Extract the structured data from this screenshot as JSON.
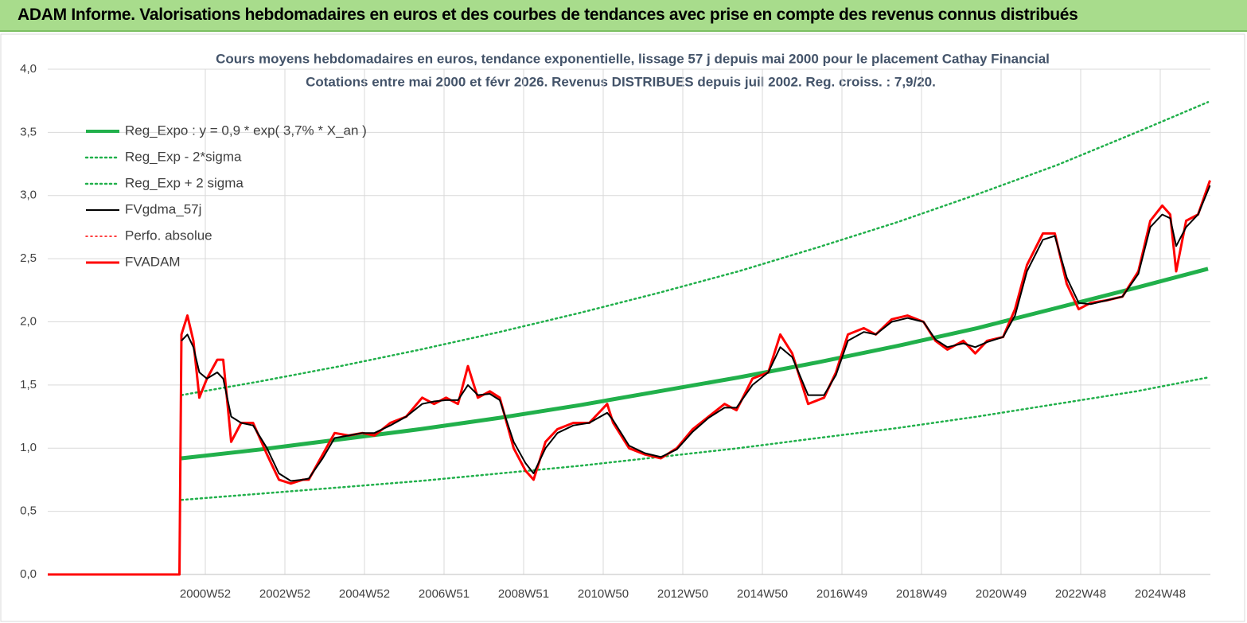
{
  "header_title": "ADAM Informe. Valorisations hebdomadaires en euros et des courbes de tendances avec prise en compte des revenus connus distribués",
  "chart_data": {
    "type": "line",
    "title": "Cours moyens hebdomadaires en euros, tendance exponentielle, lissage 57 j depuis mai 2000 pour le placement Cathay Financial",
    "subtitle": "Cotations entre mai 2000 et févr 2026. Revenus DISTRIBUES depuis juil 2002. Reg. croiss. : 7,9/20.",
    "xlim": [
      1997.04,
      2026.26
    ],
    "xticks": [
      {
        "value": 2001,
        "label": "2000W52"
      },
      {
        "value": 2003,
        "label": "2002W52"
      },
      {
        "value": 2005,
        "label": "2004W52"
      },
      {
        "value": 2007,
        "label": "2006W51"
      },
      {
        "value": 2009,
        "label": "2008W51"
      },
      {
        "value": 2011,
        "label": "2010W50"
      },
      {
        "value": 2013,
        "label": "2012W50"
      },
      {
        "value": 2015,
        "label": "2014W50"
      },
      {
        "value": 2017,
        "label": "2016W49"
      },
      {
        "value": 2019,
        "label": "2018W49"
      },
      {
        "value": 2021,
        "label": "2020W49"
      },
      {
        "value": 2023,
        "label": "2022W48"
      },
      {
        "value": 2025,
        "label": "2024W48"
      }
    ],
    "ylim": [
      0,
      4
    ],
    "yticks": [
      {
        "value": 0,
        "label": "0,0"
      },
      {
        "value": 0.5,
        "label": "0,5"
      },
      {
        "value": 1,
        "label": "1,0"
      },
      {
        "value": 1.5,
        "label": "1,5"
      },
      {
        "value": 2,
        "label": "2,0"
      },
      {
        "value": 2.5,
        "label": "2,5"
      },
      {
        "value": 3,
        "label": "3,0"
      },
      {
        "value": 3.5,
        "label": "3,5"
      },
      {
        "value": 4,
        "label": "4,0"
      }
    ],
    "grid": true,
    "legend": "top-left",
    "series": [
      {
        "name": "Reg_Expo : y = 0,9 * exp( 3,7% *  X_an )",
        "color": "#21b04b",
        "style": "solid",
        "width": 5,
        "x": [
          2000.4,
          2002.4,
          2004.4,
          2006.4,
          2008.4,
          2010.4,
          2012.4,
          2014.4,
          2016.4,
          2018.4,
          2020.4,
          2022.4,
          2024.4,
          2026.2
        ],
        "values": [
          0.92,
          0.99,
          1.07,
          1.15,
          1.24,
          1.34,
          1.45,
          1.56,
          1.68,
          1.81,
          1.95,
          2.11,
          2.27,
          2.42
        ]
      },
      {
        "name": "Reg_Exp - 2*sigma",
        "color": "#21b04b",
        "style": "dotted",
        "width": 2.5,
        "x": [
          2000.4,
          2002.4,
          2004.4,
          2006.4,
          2008.4,
          2010.4,
          2012.4,
          2014.4,
          2016.4,
          2018.4,
          2020.4,
          2022.4,
          2024.4,
          2026.2
        ],
        "values": [
          0.59,
          0.64,
          0.69,
          0.74,
          0.8,
          0.86,
          0.93,
          1.0,
          1.08,
          1.16,
          1.25,
          1.35,
          1.45,
          1.56
        ]
      },
      {
        "name": "Reg_Exp + 2 sigma",
        "color": "#21b04b",
        "style": "dotted",
        "width": 2.5,
        "x": [
          2000.4,
          2002.4,
          2004.4,
          2006.4,
          2008.4,
          2010.4,
          2012.4,
          2014.4,
          2016.4,
          2018.4,
          2020.4,
          2022.4,
          2024.4,
          2026.2
        ],
        "values": [
          1.42,
          1.53,
          1.65,
          1.78,
          1.92,
          2.07,
          2.23,
          2.4,
          2.59,
          2.79,
          3.01,
          3.24,
          3.5,
          3.74
        ]
      },
      {
        "name": "FVgdma_57j",
        "color": "#000000",
        "style": "solid",
        "width": 2,
        "x": [
          2000.4,
          2000.55,
          2000.7,
          2000.85,
          2001.04,
          2001.3,
          2001.45,
          2001.65,
          2001.9,
          2002.2,
          2002.55,
          2002.85,
          2003.15,
          2003.45,
          2003.6,
          2003.95,
          2004.25,
          2004.6,
          2004.95,
          2005.25,
          2005.65,
          2006.05,
          2006.45,
          2006.75,
          2007.05,
          2007.35,
          2007.6,
          2007.85,
          2008.15,
          2008.4,
          2008.75,
          2009.05,
          2009.25,
          2009.55,
          2009.85,
          2010.25,
          2010.65,
          2011.1,
          2011.25,
          2011.65,
          2012.05,
          2012.45,
          2012.85,
          2013.25,
          2013.65,
          2014.05,
          2014.35,
          2014.75,
          2015.15,
          2015.45,
          2015.75,
          2016.15,
          2016.55,
          2016.85,
          2017.15,
          2017.55,
          2017.85,
          2018.25,
          2018.65,
          2019.05,
          2019.35,
          2019.65,
          2020.05,
          2020.35,
          2020.65,
          2021.05,
          2021.35,
          2021.65,
          2022.05,
          2022.35,
          2022.65,
          2022.95,
          2023.25,
          2023.65,
          2024.05,
          2024.45,
          2024.75,
          2025.05,
          2025.25,
          2025.4,
          2025.65,
          2025.95,
          2026.25
        ],
        "values": [
          1.85,
          1.9,
          1.8,
          1.6,
          1.55,
          1.6,
          1.55,
          1.25,
          1.2,
          1.18,
          1.0,
          0.8,
          0.74,
          0.75,
          0.76,
          0.92,
          1.08,
          1.1,
          1.12,
          1.12,
          1.18,
          1.25,
          1.35,
          1.37,
          1.38,
          1.38,
          1.5,
          1.42,
          1.43,
          1.38,
          1.05,
          0.88,
          0.8,
          1.0,
          1.12,
          1.18,
          1.2,
          1.28,
          1.22,
          1.02,
          0.96,
          0.93,
          0.99,
          1.13,
          1.24,
          1.32,
          1.32,
          1.5,
          1.6,
          1.8,
          1.72,
          1.42,
          1.42,
          1.58,
          1.85,
          1.92,
          1.9,
          2.0,
          2.03,
          2.0,
          1.86,
          1.8,
          1.83,
          1.8,
          1.84,
          1.88,
          2.05,
          2.4,
          2.65,
          2.68,
          2.35,
          2.15,
          2.14,
          2.17,
          2.2,
          2.38,
          2.75,
          2.85,
          2.82,
          2.6,
          2.75,
          2.85,
          3.08
        ]
      },
      {
        "name": "Perfo. absolue",
        "color": "#ff0000",
        "style": "dotted",
        "width": 1.5,
        "x": [],
        "values": []
      },
      {
        "name": "FVADAM",
        "color": "#ff0000",
        "style": "solid",
        "width": 3,
        "x": [
          1997.04,
          2000.35,
          2000.4,
          2000.55,
          2000.7,
          2000.85,
          2001.04,
          2001.3,
          2001.45,
          2001.65,
          2001.9,
          2002.2,
          2002.55,
          2002.85,
          2003.15,
          2003.45,
          2003.6,
          2003.95,
          2004.25,
          2004.6,
          2004.95,
          2005.25,
          2005.65,
          2006.05,
          2006.45,
          2006.75,
          2007.05,
          2007.35,
          2007.6,
          2007.85,
          2008.15,
          2008.4,
          2008.75,
          2009.05,
          2009.25,
          2009.55,
          2009.85,
          2010.25,
          2010.65,
          2011.1,
          2011.25,
          2011.65,
          2012.05,
          2012.45,
          2012.85,
          2013.25,
          2013.65,
          2014.05,
          2014.35,
          2014.75,
          2015.15,
          2015.45,
          2015.75,
          2016.15,
          2016.55,
          2016.85,
          2017.15,
          2017.55,
          2017.85,
          2018.25,
          2018.65,
          2019.05,
          2019.35,
          2019.65,
          2020.05,
          2020.35,
          2020.65,
          2021.05,
          2021.35,
          2021.65,
          2022.05,
          2022.35,
          2022.65,
          2022.95,
          2023.25,
          2023.65,
          2024.05,
          2024.45,
          2024.75,
          2025.05,
          2025.25,
          2025.4,
          2025.65,
          2025.95,
          2026.25
        ],
        "values": [
          0,
          0,
          1.9,
          2.05,
          1.85,
          1.4,
          1.55,
          1.7,
          1.7,
          1.05,
          1.2,
          1.2,
          0.95,
          0.75,
          0.72,
          0.75,
          0.75,
          0.95,
          1.12,
          1.1,
          1.12,
          1.1,
          1.2,
          1.25,
          1.4,
          1.35,
          1.4,
          1.35,
          1.65,
          1.4,
          1.45,
          1.4,
          1.0,
          0.82,
          0.75,
          1.05,
          1.15,
          1.2,
          1.2,
          1.35,
          1.2,
          1.0,
          0.95,
          0.92,
          1.0,
          1.15,
          1.25,
          1.35,
          1.3,
          1.55,
          1.6,
          1.9,
          1.75,
          1.35,
          1.4,
          1.6,
          1.9,
          1.95,
          1.9,
          2.02,
          2.05,
          2.0,
          1.85,
          1.78,
          1.85,
          1.75,
          1.85,
          1.88,
          2.1,
          2.45,
          2.7,
          2.7,
          2.3,
          2.1,
          2.15,
          2.17,
          2.2,
          2.4,
          2.8,
          2.92,
          2.85,
          2.4,
          2.8,
          2.85,
          3.12
        ]
      }
    ]
  }
}
